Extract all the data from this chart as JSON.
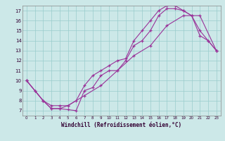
{
  "xlabel": "Windchill (Refroidissement éolien,°C)",
  "background_color": "#cce8e8",
  "grid_color": "#99cccc",
  "line_color": "#993399",
  "xlim": [
    -0.5,
    23.5
  ],
  "ylim": [
    6.5,
    17.5
  ],
  "yticks": [
    7,
    8,
    9,
    10,
    11,
    12,
    13,
    14,
    15,
    16,
    17
  ],
  "xticks": [
    0,
    1,
    2,
    3,
    4,
    5,
    6,
    7,
    8,
    9,
    10,
    11,
    12,
    13,
    14,
    15,
    16,
    17,
    18,
    19,
    20,
    21,
    22,
    23
  ],
  "line1_x": [
    0,
    1,
    2,
    3,
    4,
    5,
    6,
    7,
    8,
    9,
    10,
    11,
    12,
    13,
    14,
    15,
    16,
    17,
    18,
    19,
    20,
    21,
    22,
    23
  ],
  "line1_y": [
    10,
    9,
    8,
    7.2,
    7.2,
    7.1,
    7.0,
    9.0,
    9.3,
    10.5,
    11.0,
    11.0,
    12.0,
    13.5,
    14.0,
    15.0,
    16.5,
    17.2,
    17.2,
    17.0,
    16.5,
    14.5,
    14.0,
    13.0
  ],
  "line2_x": [
    0,
    1,
    2,
    3,
    4,
    5,
    6,
    7,
    8,
    9,
    10,
    11,
    12,
    13,
    14,
    15,
    16,
    17,
    18,
    19,
    20,
    21,
    22,
    23
  ],
  "line2_y": [
    10,
    9,
    8,
    7.2,
    7.2,
    7.5,
    8.0,
    9.5,
    10.5,
    11.0,
    11.5,
    12.0,
    12.2,
    14.0,
    15.0,
    16.0,
    17.0,
    17.5,
    17.5,
    17.0,
    16.5,
    15.0,
    14.0,
    13.0
  ],
  "line3_x": [
    0,
    2,
    3,
    4,
    5,
    7,
    9,
    11,
    13,
    15,
    17,
    19,
    21,
    23
  ],
  "line3_y": [
    10,
    8.0,
    7.5,
    7.5,
    7.5,
    8.5,
    9.5,
    11.0,
    12.5,
    13.5,
    15.5,
    16.5,
    16.5,
    13.0
  ]
}
